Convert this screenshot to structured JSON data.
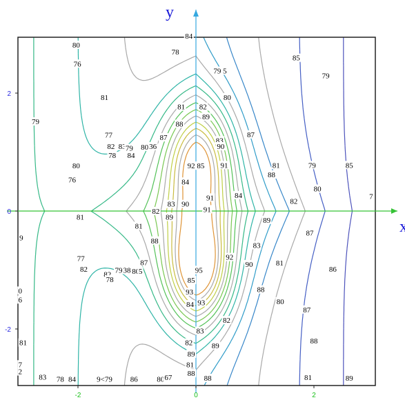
{
  "chart_data": {
    "type": "contour",
    "title": "",
    "xlabel": "x",
    "ylabel": "y",
    "xlim": [
      -3.0,
      3.0
    ],
    "ylim": [
      -2.9,
      3.0
    ],
    "grid": false,
    "x_ticks": [
      {
        "value": -2,
        "label": "-2"
      },
      {
        "value": 0,
        "label": "0"
      },
      {
        "value": 2,
        "label": "2"
      }
    ],
    "y_ticks": [
      {
        "value": 2,
        "label": "2"
      },
      {
        "value": 0,
        "label": "0"
      },
      {
        "value": -2,
        "label": "-2"
      }
    ],
    "tick_label_colors": {
      "x": "#19c019",
      "y": "#2a2ae0"
    },
    "axis_colors": {
      "x_axis": "#35c235",
      "y_axis": "#35a8e0"
    },
    "peaks": [
      {
        "x": 0.05,
        "y": 0.85,
        "value": 92
      },
      {
        "x": 0.05,
        "y": -0.95,
        "value": 95
      }
    ],
    "contour_labels": [
      {
        "text": "84",
        "x": -0.12,
        "y": 2.97
      },
      {
        "text": "78",
        "x": -0.35,
        "y": 2.7
      },
      {
        "text": "80",
        "x": -2.03,
        "y": 2.82
      },
      {
        "text": "76",
        "x": -2.01,
        "y": 2.5
      },
      {
        "text": "81",
        "x": -1.55,
        "y": 1.93
      },
      {
        "text": "79",
        "x": -2.72,
        "y": 1.52
      },
      {
        "text": "79 5",
        "x": 0.41,
        "y": 2.38
      },
      {
        "text": "80",
        "x": 0.53,
        "y": 1.93
      },
      {
        "text": "85",
        "x": 1.7,
        "y": 2.6
      },
      {
        "text": "79",
        "x": 2.2,
        "y": 2.3
      },
      {
        "text": "81",
        "x": -0.25,
        "y": 1.77
      },
      {
        "text": "82",
        "x": 0.12,
        "y": 1.77
      },
      {
        "text": "89",
        "x": 0.17,
        "y": 1.6
      },
      {
        "text": "88",
        "x": -0.28,
        "y": 1.48
      },
      {
        "text": "87",
        "x": 0.93,
        "y": 1.3
      },
      {
        "text": "77",
        "x": -1.48,
        "y": 1.29
      },
      {
        "text": "82",
        "x": -1.44,
        "y": 1.1
      },
      {
        "text": "83",
        "x": -1.25,
        "y": 1.1
      },
      {
        "text": "79",
        "x": -1.13,
        "y": 1.07
      },
      {
        "text": "80",
        "x": -0.87,
        "y": 1.09
      },
      {
        "text": "36",
        "x": -0.73,
        "y": 1.1
      },
      {
        "text": "87",
        "x": -0.55,
        "y": 1.25
      },
      {
        "text": "83",
        "x": 0.4,
        "y": 1.2
      },
      {
        "text": "90",
        "x": 0.42,
        "y": 1.1
      },
      {
        "text": "78",
        "x": -1.42,
        "y": 0.95
      },
      {
        "text": "84",
        "x": -1.1,
        "y": 0.95
      },
      {
        "text": "80",
        "x": -2.03,
        "y": 0.77
      },
      {
        "text": "92",
        "x": -0.08,
        "y": 0.77
      },
      {
        "text": "85",
        "x": 0.08,
        "y": 0.77
      },
      {
        "text": "91",
        "x": 0.48,
        "y": 0.78
      },
      {
        "text": "81",
        "x": 1.36,
        "y": 0.78
      },
      {
        "text": "79",
        "x": 1.97,
        "y": 0.78
      },
      {
        "text": "85",
        "x": 2.6,
        "y": 0.78
      },
      {
        "text": "76",
        "x": -2.1,
        "y": 0.53
      },
      {
        "text": "88",
        "x": 1.28,
        "y": 0.62
      },
      {
        "text": "84",
        "x": -0.18,
        "y": 0.5
      },
      {
        "text": "80",
        "x": 2.06,
        "y": 0.38
      },
      {
        "text": "91",
        "x": 0.24,
        "y": 0.23
      },
      {
        "text": "84",
        "x": 0.72,
        "y": 0.27
      },
      {
        "text": "7",
        "x": 2.97,
        "y": 0.25
      },
      {
        "text": "82",
        "x": 1.66,
        "y": 0.17
      },
      {
        "text": "83",
        "x": -0.42,
        "y": 0.12
      },
      {
        "text": "90",
        "x": -0.18,
        "y": 0.12
      },
      {
        "text": "91",
        "x": 0.19,
        "y": 0.03
      },
      {
        "text": "82",
        "x": -0.68,
        "y": 0.0
      },
      {
        "text": "89",
        "x": -0.45,
        "y": -0.1
      },
      {
        "text": "81",
        "x": -1.96,
        "y": -0.1
      },
      {
        "text": "89",
        "x": 1.2,
        "y": -0.15
      },
      {
        "text": "81",
        "x": -0.97,
        "y": -0.25
      },
      {
        "text": "87",
        "x": 1.93,
        "y": -0.37
      },
      {
        "text": "9",
        "x": -2.96,
        "y": -0.45
      },
      {
        "text": "88",
        "x": -0.7,
        "y": -0.5
      },
      {
        "text": "83",
        "x": 1.03,
        "y": -0.58
      },
      {
        "text": "92",
        "x": 0.57,
        "y": -0.78
      },
      {
        "text": "90",
        "x": 0.9,
        "y": -0.9
      },
      {
        "text": "81",
        "x": 1.42,
        "y": -0.88
      },
      {
        "text": "86",
        "x": 2.32,
        "y": -0.98
      },
      {
        "text": "77",
        "x": -1.95,
        "y": -0.8
      },
      {
        "text": "87",
        "x": -0.88,
        "y": -0.87
      },
      {
        "text": "82",
        "x": -1.9,
        "y": -0.98
      },
      {
        "text": "79",
        "x": -1.31,
        "y": -1.0
      },
      {
        "text": "38",
        "x": -1.17,
        "y": -1.0
      },
      {
        "text": "80",
        "x": -1.02,
        "y": -1.02
      },
      {
        "text": "5",
        "x": -0.94,
        "y": -1.02
      },
      {
        "text": "82",
        "x": -1.5,
        "y": -1.07
      },
      {
        "text": "78",
        "x": -1.46,
        "y": -1.16
      },
      {
        "text": "95",
        "x": 0.05,
        "y": -1.0
      },
      {
        "text": "85",
        "x": -0.08,
        "y": -1.17
      },
      {
        "text": "88",
        "x": 1.1,
        "y": -1.33
      },
      {
        "text": "0",
        "x": -2.98,
        "y": -1.35
      },
      {
        "text": "93",
        "x": -0.11,
        "y": -1.37
      },
      {
        "text": "80",
        "x": 1.43,
        "y": -1.53
      },
      {
        "text": "6",
        "x": -2.98,
        "y": -1.5
      },
      {
        "text": "84",
        "x": -0.1,
        "y": -1.58
      },
      {
        "text": "93",
        "x": 0.09,
        "y": -1.55
      },
      {
        "text": "87",
        "x": 1.88,
        "y": -1.67
      },
      {
        "text": "82",
        "x": 0.52,
        "y": -1.85
      },
      {
        "text": "83",
        "x": 0.07,
        "y": -2.03
      },
      {
        "text": "88",
        "x": 2.0,
        "y": -2.2
      },
      {
        "text": "81",
        "x": -2.93,
        "y": -2.23
      },
      {
        "text": "82",
        "x": -0.12,
        "y": -2.23
      },
      {
        "text": "89",
        "x": 0.33,
        "y": -2.28
      },
      {
        "text": "89",
        "x": -0.08,
        "y": -2.42
      },
      {
        "text": "81",
        "x": -0.1,
        "y": -2.6
      },
      {
        "text": "88",
        "x": -0.08,
        "y": -2.75
      },
      {
        "text": "7",
        "x": -2.98,
        "y": -2.6
      },
      {
        "text": "2",
        "x": -2.98,
        "y": -2.72
      },
      {
        "text": "83",
        "x": -2.6,
        "y": -2.81
      },
      {
        "text": "78",
        "x": -2.3,
        "y": -2.85
      },
      {
        "text": "84",
        "x": -2.1,
        "y": -2.85
      },
      {
        "text": "9<79",
        "x": -1.55,
        "y": -2.85
      },
      {
        "text": "86",
        "x": -1.05,
        "y": -2.85
      },
      {
        "text": "80",
        "x": -0.6,
        "y": -2.85
      },
      {
        "text": "67",
        "x": -0.47,
        "y": -2.82
      },
      {
        "text": "88",
        "x": 0.2,
        "y": -2.83
      },
      {
        "text": "81",
        "x": 1.9,
        "y": -2.82
      },
      {
        "text": "89",
        "x": 2.6,
        "y": -2.83
      }
    ]
  }
}
